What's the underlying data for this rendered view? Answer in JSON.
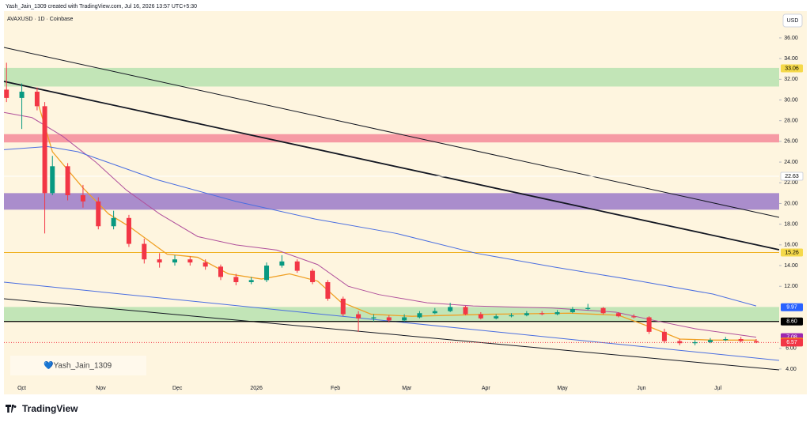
{
  "chart_data": {
    "type": "candlestick",
    "title": "Yash_Jain_1309 created with TradingView.com, Jul 16, 2026 13:57 UTC+5:30",
    "subtitle": "AVAXUSD · 1D · Coinbase",
    "currency": "USD",
    "watermark": "💙Yash_Jain_1309",
    "brand": "TradingView",
    "x": [
      -6,
      0,
      6,
      9,
      12,
      18,
      24,
      30,
      36,
      42,
      48,
      54,
      60,
      66,
      72,
      78,
      84,
      90,
      96,
      102,
      108,
      114,
      120,
      126,
      132,
      138,
      144,
      150,
      156,
      162,
      168,
      174,
      180,
      186,
      192,
      198,
      204,
      210,
      216,
      222,
      228,
      234,
      240,
      246,
      252,
      258,
      264,
      270,
      276,
      282,
      288
    ],
    "open": [
      31.0,
      30.2,
      30.8,
      29.4,
      21.0,
      23.6,
      20.8,
      20.2,
      17.8,
      18.6,
      16.1,
      14.6,
      14.3,
      14.6,
      14.3,
      13.9,
      12.9,
      12.4,
      12.6,
      14.0,
      14.4,
      13.5,
      12.4,
      10.8,
      9.3,
      8.9,
      9.0,
      8.7,
      9.0,
      9.4,
      9.6,
      10.0,
      9.3,
      8.9,
      9.1,
      9.2,
      9.4,
      9.3,
      9.5,
      9.8,
      9.9,
      9.4,
      9.1,
      9.0,
      7.6,
      6.7,
      6.5,
      6.6,
      6.8,
      6.9,
      6.7
    ],
    "high": [
      33.6,
      31.6,
      31.2,
      29.8,
      24.6,
      23.9,
      21.8,
      20.6,
      19.3,
      18.9,
      16.6,
      15.2,
      15.0,
      14.9,
      14.6,
      14.1,
      13.2,
      12.9,
      14.3,
      15.0,
      14.6,
      13.7,
      12.6,
      11.0,
      9.6,
      9.3,
      9.2,
      9.3,
      9.6,
      9.9,
      10.4,
      10.1,
      9.5,
      9.3,
      9.4,
      9.6,
      9.6,
      9.7,
      10.0,
      10.3,
      10.0,
      9.5,
      9.3,
      9.1,
      7.9,
      6.9,
      6.8,
      7.0,
      7.1,
      7.1,
      6.9
    ],
    "low": [
      29.8,
      27.2,
      29.0,
      17.1,
      20.8,
      20.3,
      19.6,
      17.5,
      17.5,
      15.8,
      14.2,
      13.8,
      14.0,
      14.0,
      13.6,
      12.6,
      12.1,
      12.2,
      12.4,
      13.8,
      13.3,
      12.2,
      10.6,
      9.1,
      7.6,
      8.6,
      8.5,
      8.6,
      8.9,
      9.3,
      9.5,
      9.2,
      8.8,
      8.8,
      9.0,
      9.1,
      9.2,
      9.2,
      9.4,
      9.7,
      9.3,
      9.0,
      8.9,
      7.4,
      6.5,
      6.3,
      6.3,
      6.5,
      6.7,
      6.6,
      6.5
    ],
    "close": [
      30.2,
      30.8,
      29.4,
      21.0,
      23.6,
      20.8,
      20.2,
      17.8,
      18.6,
      16.1,
      14.6,
      14.3,
      14.6,
      14.3,
      13.9,
      12.9,
      12.4,
      12.6,
      14.0,
      14.4,
      13.5,
      12.4,
      10.8,
      9.3,
      8.9,
      9.0,
      8.7,
      9.0,
      9.4,
      9.6,
      10.0,
      9.3,
      8.9,
      9.1,
      9.2,
      9.4,
      9.3,
      9.5,
      9.8,
      9.9,
      9.4,
      9.1,
      9.0,
      7.6,
      6.7,
      6.5,
      6.6,
      6.8,
      6.9,
      6.7,
      6.57
    ],
    "up_color": "#089981",
    "down_color": "#f23645",
    "lines": [
      {
        "color": "#f0a024",
        "x": [
          6,
          12,
          24,
          34,
          42,
          57,
          69,
          81,
          94,
          105,
          116,
          125,
          137,
          153,
          184,
          215,
          234,
          245,
          258,
          271,
          288
        ],
        "values": [
          30.0,
          25.0,
          21.5,
          19.0,
          17.8,
          15.1,
          14.8,
          13.2,
          12.7,
          13.2,
          12.5,
          10.5,
          9.3,
          9.1,
          9.3,
          9.4,
          9.2,
          8.2,
          6.9,
          6.8,
          6.8
        ]
      },
      {
        "color": "#b0509c",
        "x": [
          -7,
          4,
          16,
          29,
          41,
          54,
          69,
          84,
          100,
          116,
          128,
          140,
          159,
          177,
          208,
          233,
          248,
          264,
          288
        ],
        "values": [
          28.8,
          28.3,
          26.5,
          24.0,
          21.3,
          19.0,
          16.8,
          16.0,
          15.5,
          14.1,
          12.0,
          11.2,
          10.4,
          10.1,
          9.9,
          9.5,
          8.7,
          7.9,
          7.08
        ]
      },
      {
        "color": "#4a6ee0",
        "x": [
          -7,
          10,
          22,
          53,
          84,
          115,
          147,
          178,
          209,
          240,
          271,
          288
        ],
        "values": [
          25.2,
          25.5,
          25.0,
          22.3,
          20.2,
          18.5,
          17.1,
          15.2,
          13.85,
          12.6,
          11.25,
          10.1
        ]
      }
    ],
    "zones": [
      {
        "from": 31.3,
        "to": 33.1,
        "color": "#b7e2b0"
      },
      {
        "from": 25.9,
        "to": 26.7,
        "color": "#f4899a"
      },
      {
        "from": 19.4,
        "to": 21.0,
        "color": "#9b7ac9"
      },
      {
        "from": 8.6,
        "to": 10.0,
        "color": "#b7e2b0"
      }
    ],
    "levels": [
      {
        "value": 22.63,
        "color": "#ffffff"
      },
      {
        "value": 15.26,
        "color": "#f0b020"
      },
      {
        "value": 8.6,
        "color": "#000000"
      }
    ],
    "price_labels": [
      {
        "value": 33.06,
        "label": "33.06",
        "bg": "#f5d94a",
        "fg": "#000000"
      },
      {
        "value": 22.63,
        "label": "22.63",
        "bg": "#ffffff",
        "fg": "#000000"
      },
      {
        "value": 15.26,
        "label": "15.26",
        "bg": "#f5d94a",
        "fg": "#000000"
      },
      {
        "value": 9.97,
        "label": "9.97",
        "bg": "#2962ff",
        "fg": "#ffffff"
      },
      {
        "value": 8.6,
        "label": "8.60",
        "bg": "#000000",
        "fg": "#ffffff"
      },
      {
        "value": 7.08,
        "label": "7.08",
        "bg": "#9c27b0",
        "fg": "#ffffff"
      },
      {
        "value": 6.65,
        "label": "6.65",
        "bg": "#ff9800",
        "fg": "#000000"
      },
      {
        "value": 6.57,
        "label": "6.57",
        "bg": "#f23645",
        "fg": "#ffffff"
      }
    ],
    "xlim": [
      -7,
      297
    ],
    "xticks": [
      {
        "value": 0,
        "label": "Oct"
      },
      {
        "value": 31,
        "label": "Nov"
      },
      {
        "value": 61,
        "label": "Dec"
      },
      {
        "value": 92,
        "label": "2026"
      },
      {
        "value": 123,
        "label": "Feb"
      },
      {
        "value": 151,
        "label": "Mar"
      },
      {
        "value": 182,
        "label": "Apr"
      },
      {
        "value": 212,
        "label": "May"
      },
      {
        "value": 243,
        "label": "Jun"
      },
      {
        "value": 273,
        "label": "Jul"
      }
    ],
    "ylim": [
      1.86,
      37.37
    ],
    "yticks": [
      {
        "value": 36,
        "label": "36.00"
      },
      {
        "value": 34,
        "label": "34.00"
      },
      {
        "value": 32,
        "label": "32.00"
      },
      {
        "value": 30,
        "label": "30.00"
      },
      {
        "value": 28,
        "label": "28.00"
      },
      {
        "value": 26,
        "label": "26.00"
      },
      {
        "value": 24,
        "label": "24.00"
      },
      {
        "value": 22,
        "label": "22.00"
      },
      {
        "value": 20,
        "label": "20.00"
      },
      {
        "value": 18,
        "label": "18.00"
      },
      {
        "value": 16,
        "label": "16.00"
      },
      {
        "value": 14,
        "label": "14.00"
      },
      {
        "value": 12,
        "label": "12.00"
      },
      {
        "value": 6,
        "label": "6.00"
      },
      {
        "value": 4,
        "label": "4.00"
      }
    ],
    "grid": false
  }
}
